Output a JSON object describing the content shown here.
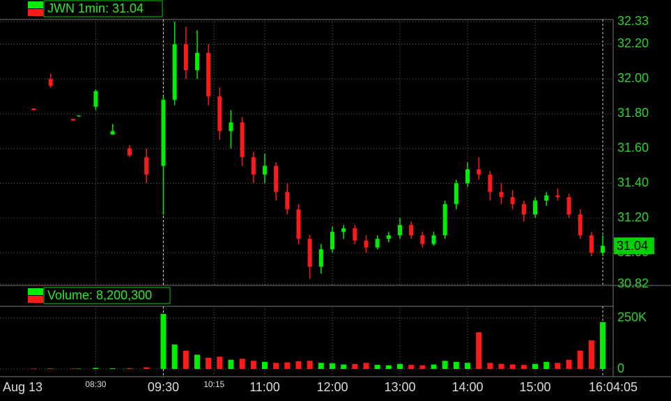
{
  "chart_data": {
    "type": "candlestick",
    "title": "JWN 1min: 31.04",
    "volume_title": "Volume: 8,200,300",
    "date": "Aug 13",
    "end_time": "16:04:05",
    "last_price": 31.04,
    "up_color": "#00ee00",
    "down_color": "#ff1a1a",
    "x": [
      "07:35",
      "07:50",
      "08:10",
      "08:15",
      "08:30",
      "08:45",
      "09:00",
      "09:15",
      "09:30",
      "09:40",
      "09:50",
      "10:00",
      "10:10",
      "10:20",
      "10:30",
      "10:40",
      "10:50",
      "11:00",
      "11:10",
      "11:20",
      "11:30",
      "11:40",
      "11:50",
      "12:00",
      "12:10",
      "12:20",
      "12:30",
      "12:40",
      "12:50",
      "13:00",
      "13:10",
      "13:20",
      "13:30",
      "13:40",
      "13:50",
      "14:00",
      "14:10",
      "14:20",
      "14:30",
      "14:40",
      "14:50",
      "15:00",
      "15:10",
      "15:20",
      "15:30",
      "15:40",
      "15:50",
      "16:00"
    ],
    "open": [
      31.83,
      32.0,
      31.77,
      31.79,
      31.84,
      31.68,
      31.6,
      31.55,
      31.5,
      31.88,
      32.2,
      32.05,
      32.15,
      31.9,
      31.7,
      31.75,
      31.55,
      31.45,
      31.5,
      31.35,
      31.25,
      31.08,
      30.92,
      31.02,
      31.12,
      31.14,
      31.07,
      31.03,
      31.08,
      31.1,
      31.16,
      31.1,
      31.05,
      31.1,
      31.28,
      31.4,
      31.48,
      31.45,
      31.35,
      31.32,
      31.28,
      31.22,
      31.3,
      31.33,
      31.32,
      31.22,
      31.1,
      31.0
    ],
    "high": [
      31.83,
      32.03,
      31.77,
      31.79,
      31.94,
      31.74,
      31.62,
      31.6,
      31.9,
      32.33,
      32.3,
      32.28,
      32.2,
      31.95,
      31.82,
      31.78,
      31.58,
      31.57,
      31.52,
      31.4,
      31.28,
      31.1,
      31.05,
      31.15,
      31.16,
      31.16,
      31.1,
      31.1,
      31.12,
      31.2,
      31.18,
      31.12,
      31.12,
      31.3,
      31.42,
      31.52,
      31.55,
      31.47,
      31.4,
      31.36,
      31.3,
      31.32,
      31.35,
      31.37,
      31.34,
      31.25,
      31.12,
      31.1
    ],
    "low": [
      31.82,
      31.95,
      31.76,
      31.78,
      31.82,
      31.68,
      31.55,
      31.4,
      31.22,
      31.85,
      32.0,
      32.0,
      31.85,
      31.65,
      31.6,
      31.5,
      31.4,
      31.4,
      31.3,
      31.22,
      31.05,
      30.85,
      30.88,
      31.0,
      31.08,
      31.05,
      31.0,
      31.02,
      31.06,
      31.08,
      31.08,
      31.03,
      31.04,
      31.08,
      31.25,
      31.38,
      31.42,
      31.3,
      31.28,
      31.25,
      31.18,
      31.2,
      31.27,
      31.3,
      31.2,
      31.08,
      30.98,
      30.98
    ],
    "close": [
      31.82,
      31.96,
      31.76,
      31.79,
      31.93,
      31.7,
      31.56,
      31.45,
      31.88,
      32.2,
      32.05,
      32.15,
      31.9,
      31.7,
      31.75,
      31.55,
      31.45,
      31.5,
      31.35,
      31.25,
      31.08,
      30.92,
      31.02,
      31.12,
      31.14,
      31.07,
      31.03,
      31.08,
      31.1,
      31.16,
      31.1,
      31.05,
      31.1,
      31.28,
      31.4,
      31.48,
      31.45,
      31.35,
      31.32,
      31.28,
      31.22,
      31.3,
      31.33,
      31.32,
      31.22,
      31.1,
      31.0,
      31.04
    ],
    "volume": [
      2000,
      3000,
      2000,
      2000,
      5000,
      3000,
      4000,
      8000,
      270000,
      120000,
      90000,
      70000,
      55000,
      60000,
      45000,
      50000,
      40000,
      35000,
      30000,
      32000,
      38000,
      40000,
      30000,
      28000,
      22000,
      24000,
      30000,
      20000,
      18000,
      25000,
      20000,
      18000,
      22000,
      40000,
      35000,
      30000,
      180000,
      30000,
      25000,
      22000,
      20000,
      25000,
      35000,
      30000,
      45000,
      90000,
      140000,
      230000
    ],
    "xlim": [
      "07:05",
      "16:08"
    ],
    "xticks": [
      "09:30",
      "11:00",
      "12:00",
      "13:00",
      "14:00",
      "15:00"
    ],
    "minor_xticks": [
      "08:30",
      "10:15"
    ],
    "ylim": [
      30.82,
      32.33
    ],
    "yticks": [
      32.33,
      {
        "value": 32.2,
        "label": "32.20"
      },
      {
        "value": 32.0,
        "label": "32.00"
      },
      {
        "value": 31.8,
        "label": "31.80"
      },
      {
        "value": 31.6,
        "label": "31.60"
      },
      {
        "value": 31.4,
        "label": "31.40"
      },
      {
        "value": 31.2,
        "label": "31.20"
      },
      {
        "value": 31.0,
        "label": "31.00"
      },
      30.82
    ],
    "vol_ylim": [
      0,
      290000
    ],
    "vol_yticks": [
      {
        "value": 250000,
        "label": "250K"
      },
      0
    ],
    "grid": true
  }
}
